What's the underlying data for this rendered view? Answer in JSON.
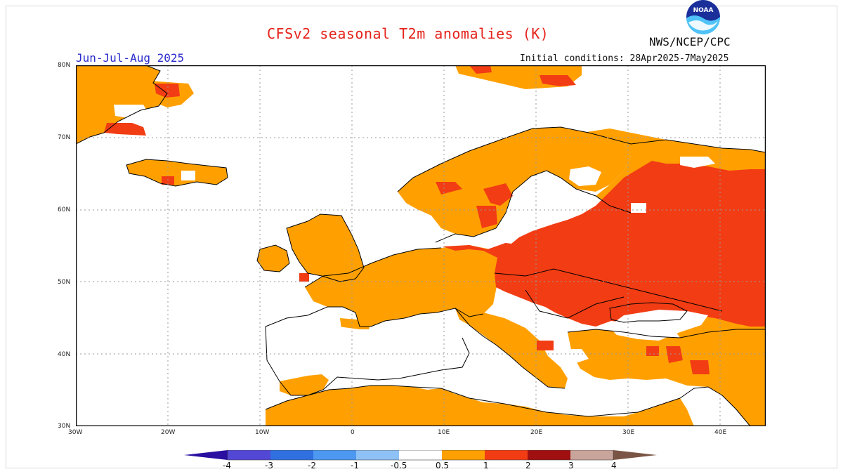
{
  "header": {
    "title": "CFSv2 seasonal T2m anomalies (K)",
    "agency": "NWS/NCEP/CPC",
    "season": "Jun-Jul-Aug 2025",
    "initial_conditions": "Initial conditions: 28Apr2025-7May2025",
    "logo_text": "NOAA"
  },
  "axes": {
    "x_ticks": [
      "30W",
      "20W",
      "10W",
      "0",
      "10E",
      "20E",
      "30E",
      "40E"
    ],
    "y_ticks": [
      "80N",
      "70N",
      "60N",
      "50N",
      "40N",
      "30N"
    ]
  },
  "colorbar": {
    "labels": [
      "-4",
      "-3",
      "-2",
      "-1",
      "-0.5",
      "0.5",
      "1",
      "2",
      "3",
      "4"
    ],
    "colors": [
      "#3b1fbf",
      "#5347d6",
      "#2f6fe0",
      "#4d98f0",
      "#8ec1f5",
      "#ffffff",
      "#ffa000",
      "#f23c14",
      "#a01010",
      "#c9a49a"
    ],
    "left_arrow_color": "#2a0fa0",
    "right_arrow_color": "#7a5545"
  },
  "legend_colors": {
    "land_outline": "#000000",
    "anomaly_0_5_to_1": "#ffa000",
    "anomaly_1_to_2": "#f23c14",
    "grid": "#9a9a9a"
  }
}
